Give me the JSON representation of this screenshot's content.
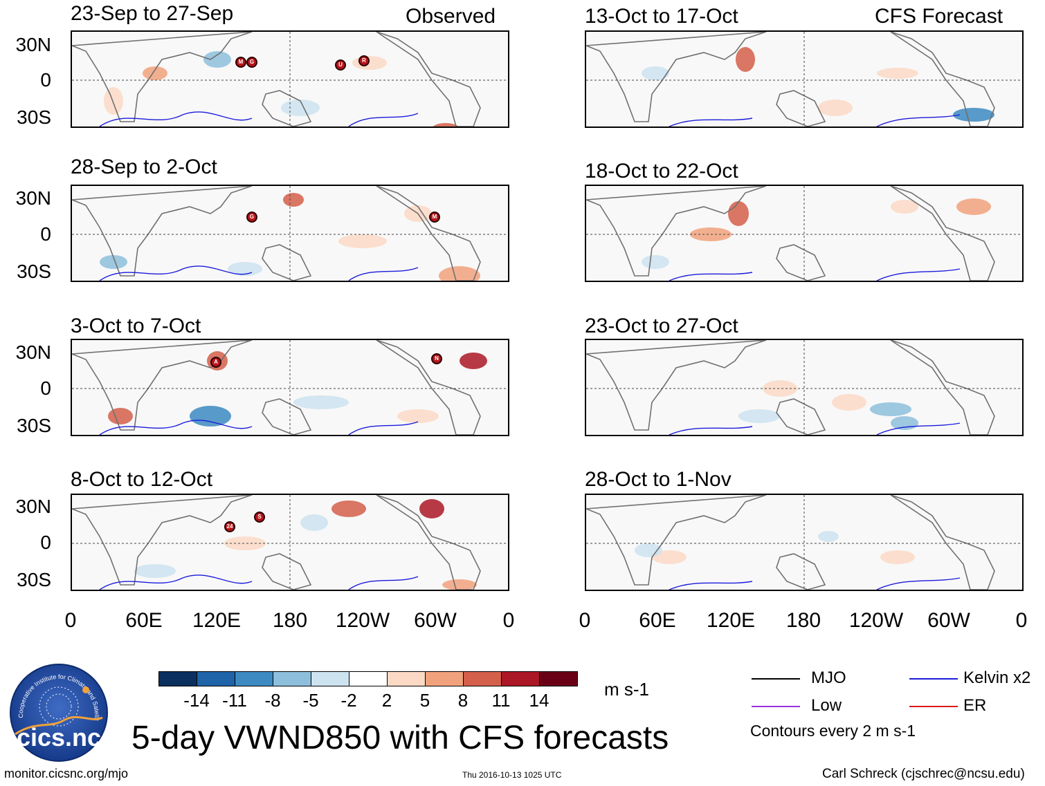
{
  "header": {
    "observed": "Observed",
    "forecast": "CFS Forecast"
  },
  "panels_left": [
    {
      "title": "23-Sep to 27-Sep",
      "storms": [
        "M",
        "G",
        "U",
        "R"
      ]
    },
    {
      "title": "28-Sep to 2-Oct",
      "storms": [
        "G",
        "M"
      ]
    },
    {
      "title": "3-Oct to 7-Oct",
      "storms": [
        "A",
        "N"
      ]
    },
    {
      "title": "8-Oct to 12-Oct",
      "storms": [
        "24",
        "S"
      ]
    }
  ],
  "panels_right": [
    {
      "title": "13-Oct to 17-Oct"
    },
    {
      "title": "18-Oct to 22-Oct"
    },
    {
      "title": "23-Oct to 27-Oct"
    },
    {
      "title": "28-Oct to 1-Nov"
    }
  ],
  "lat_labels": [
    "30N",
    "0",
    "30S"
  ],
  "lon_labels": [
    "0",
    "60E",
    "120E",
    "180",
    "120W",
    "60W",
    "0"
  ],
  "colorbar": {
    "colors": [
      "#0b2f5e",
      "#1f63a8",
      "#3c8ac1",
      "#8dbfdc",
      "#cde3f0",
      "#ffffff",
      "#fbd9c5",
      "#f1a27c",
      "#d45f4a",
      "#ac1726",
      "#6a0016"
    ],
    "labels": [
      "-14",
      "-11",
      "-8",
      "-5",
      "-2",
      "2",
      "5",
      "8",
      "11",
      "14"
    ],
    "units": "m s-1"
  },
  "legend": {
    "mjo": "MJO",
    "kelvin": "Kelvin x2",
    "low": "Low",
    "er": "ER",
    "mjo_color": "#000000",
    "kelvin_color": "#1a1adc",
    "low_color": "#9b30d9",
    "er_color": "#dc1a1a",
    "note": "Contours every 2 m s-1"
  },
  "main_title": "5-day VWND850 with CFS forecasts",
  "logo_text": "cics.nc",
  "logo_arc": "Cooperative Institute for Climate and Satellites",
  "footer": {
    "url": "monitor.cicsnc.org/mjo",
    "timestamp": "Thu 2016-10-13 1025 UTC",
    "author": "Carl Schreck (cjschrec@ncsu.edu)"
  }
}
